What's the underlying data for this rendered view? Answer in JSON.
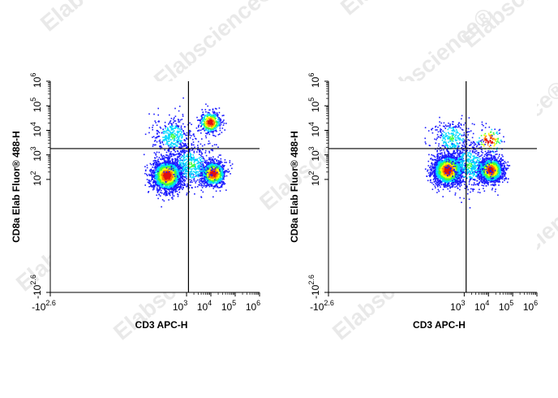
{
  "watermark": {
    "text": "Elabscience",
    "reg_mark": "®"
  },
  "colors": {
    "density_low": "#1a1aff",
    "density_mid_low": "#00d8ff",
    "density_mid": "#40ff40",
    "density_mid_high": "#ffff00",
    "density_high": "#ff7a00",
    "density_peak": "#e01010"
  },
  "chart_data": [
    {
      "type": "scatter",
      "title": "",
      "xlabel": "CD3 APC-H",
      "ylabel": "CD8a Elab Fluor® 488-H",
      "x_scale": "log",
      "y_scale": "log",
      "xlim": [
        -400,
        1000000
      ],
      "ylim": [
        -400,
        1000000
      ],
      "x_ticks": [
        {
          "base": "-10",
          "exp": "2.6"
        },
        {
          "base": "10",
          "exp": "3"
        },
        {
          "base": "10",
          "exp": "4"
        },
        {
          "base": "10",
          "exp": "5"
        },
        {
          "base": "10",
          "exp": "6"
        }
      ],
      "y_ticks": [
        {
          "base": "-10",
          "exp": "2.6"
        },
        {
          "base": "10",
          "exp": "2"
        },
        {
          "base": "10",
          "exp": "3"
        },
        {
          "base": "10",
          "exp": "4"
        },
        {
          "base": "10",
          "exp": "5"
        },
        {
          "base": "10",
          "exp": "6"
        }
      ],
      "gate": {
        "x": 1200,
        "y": 1800
      },
      "populations": [
        {
          "x": 150,
          "y": 150,
          "count": 2200,
          "spread": 0.55
        },
        {
          "x": 12000,
          "y": 180,
          "count": 1100,
          "spread": 0.45
        },
        {
          "x": 9000,
          "y": 22000,
          "count": 450,
          "spread": 0.4
        },
        {
          "x": 250,
          "y": 6000,
          "count": 380,
          "spread": 0.75
        },
        {
          "x": 1500,
          "y": 400,
          "count": 500,
          "spread": 0.9
        }
      ]
    },
    {
      "type": "scatter",
      "title": "",
      "xlabel": "CD3 APC-H",
      "ylabel": "CD8a Elab Fluor® 488-H",
      "x_scale": "log",
      "y_scale": "log",
      "xlim": [
        -400,
        1000000
      ],
      "ylim": [
        -400,
        1000000
      ],
      "x_ticks": [
        {
          "base": "-10",
          "exp": "2.6"
        },
        {
          "base": "10",
          "exp": "3"
        },
        {
          "base": "10",
          "exp": "4"
        },
        {
          "base": "10",
          "exp": "5"
        },
        {
          "base": "10",
          "exp": "6"
        }
      ],
      "y_ticks": [
        {
          "base": "-10",
          "exp": "2.6"
        },
        {
          "base": "10",
          "exp": "2"
        },
        {
          "base": "10",
          "exp": "3"
        },
        {
          "base": "10",
          "exp": "4"
        },
        {
          "base": "10",
          "exp": "5"
        },
        {
          "base": "10",
          "exp": "6"
        }
      ],
      "gate": {
        "x": 1200,
        "y": 1800
      },
      "populations": [
        {
          "x": 200,
          "y": 250,
          "count": 2200,
          "spread": 0.55
        },
        {
          "x": 12000,
          "y": 250,
          "count": 1700,
          "spread": 0.45
        },
        {
          "x": 300,
          "y": 5000,
          "count": 300,
          "spread": 0.75
        },
        {
          "x": 10000,
          "y": 4000,
          "count": 120,
          "spread": 0.55
        },
        {
          "x": 1500,
          "y": 400,
          "count": 500,
          "spread": 0.9
        }
      ]
    }
  ]
}
